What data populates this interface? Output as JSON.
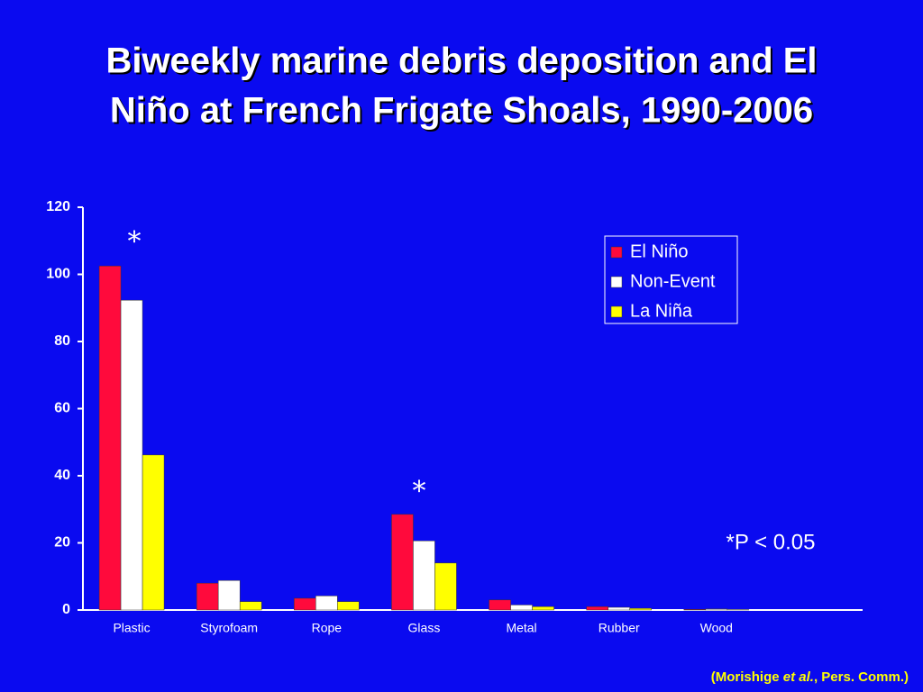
{
  "chart_data": {
    "type": "bar",
    "title": [
      "Biweekly marine debris deposition and El",
      "Niño at French Frigate Shoals, 1990-2006"
    ],
    "categories": [
      "Plastic",
      "Styrofoam",
      "Rope",
      "Glass",
      "Metal",
      "Rubber",
      "Wood",
      null
    ],
    "series": [
      {
        "name": "El Niño",
        "color": "#ff0a3c",
        "values": [
          102.5,
          8,
          3.5,
          28.5,
          3,
          1,
          0.2,
          null
        ]
      },
      {
        "name": "Non-Event",
        "color": "#ffffff",
        "values": [
          92.3,
          8.8,
          4.2,
          20.6,
          1.5,
          0.8,
          0.3,
          null
        ]
      },
      {
        "name": "La Niña",
        "color": "#ffff00",
        "values": [
          46.2,
          2.5,
          2.5,
          14,
          1,
          0.5,
          0.1,
          null
        ]
      }
    ],
    "ylim": [
      0,
      120
    ],
    "yticks": [
      0,
      20,
      40,
      60,
      80,
      100,
      120
    ],
    "legend": "upper right",
    "annotations": [
      "*",
      "*",
      "*P < 0.05"
    ],
    "source": [
      "(Morishige ",
      "et al.",
      ", Pers. Comm.)"
    ]
  }
}
